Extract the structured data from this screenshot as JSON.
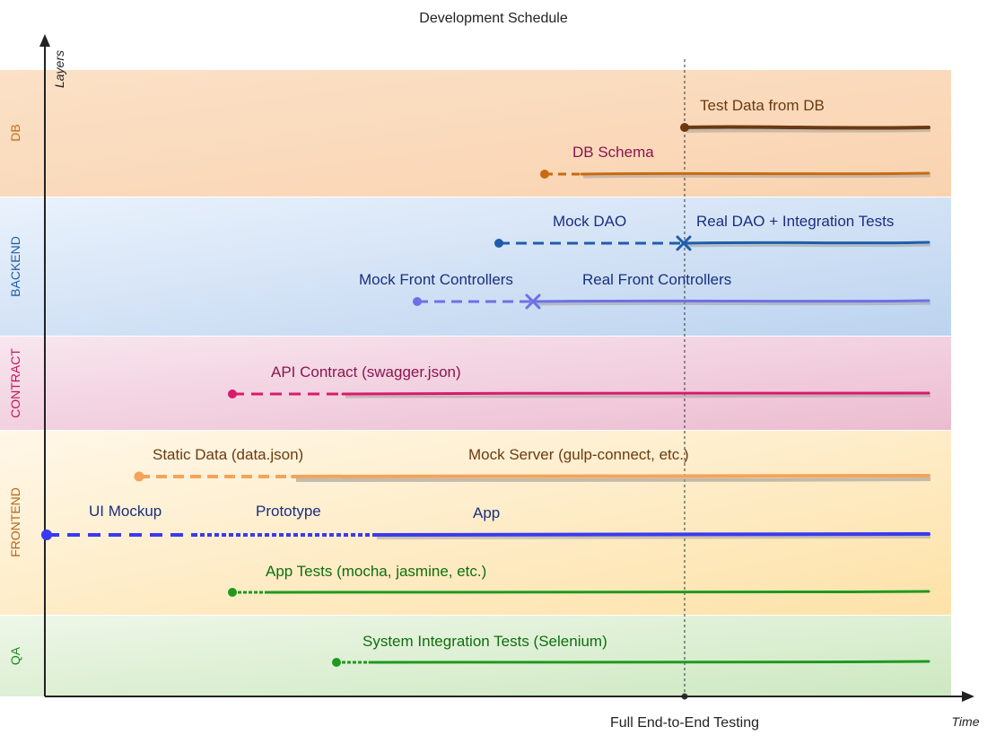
{
  "title": "Development Schedule",
  "axes": {
    "y_label": "Layers",
    "x_label": "Time",
    "milestone": "Full End-to-End Testing"
  },
  "bands": [
    {
      "id": "db",
      "name": "DB",
      "color": "#c76b12"
    },
    {
      "id": "backend",
      "name": "BACKEND",
      "color": "#1f5da8"
    },
    {
      "id": "contract",
      "name": "CONTRACT",
      "color": "#c4145e"
    },
    {
      "id": "frontend",
      "name": "FRONTEND",
      "color": "#b8661a"
    },
    {
      "id": "qa",
      "name": "QA",
      "color": "#1f8a1f"
    }
  ],
  "tracks": [
    {
      "id": "test-data",
      "band": "db",
      "color": "#6b3a12",
      "labels": [
        "Test Data from DB"
      ]
    },
    {
      "id": "db-schema",
      "band": "db",
      "color": "#c76b12",
      "labels": [
        "DB Schema"
      ]
    },
    {
      "id": "dao",
      "band": "backend",
      "color": "#1f5da8",
      "labels": [
        "Mock DAO",
        "Real DAO + Integration Tests"
      ]
    },
    {
      "id": "front-controllers",
      "band": "backend",
      "color": "#6f6fe6",
      "labels": [
        "Mock Front Controllers",
        "Real Front Controllers"
      ]
    },
    {
      "id": "api-contract",
      "band": "contract",
      "color": "#d81b6a",
      "labels": [
        "API Contract (swagger.json)"
      ]
    },
    {
      "id": "static-data",
      "band": "frontend",
      "color": "#f3a45a",
      "labels": [
        "Static Data (data.json)",
        "Mock Server (gulp-connect, etc.)"
      ]
    },
    {
      "id": "app",
      "band": "frontend",
      "color": "#3a3af0",
      "labels": [
        "UI Mockup",
        "Prototype",
        "App"
      ]
    },
    {
      "id": "app-tests",
      "band": "frontend",
      "color": "#1f9a1f",
      "labels": [
        "App Tests (mocha, jasmine, etc.)"
      ]
    },
    {
      "id": "system-tests",
      "band": "qa",
      "color": "#1f9a1f",
      "labels": [
        "System Integration Tests (Selenium)"
      ]
    }
  ]
}
